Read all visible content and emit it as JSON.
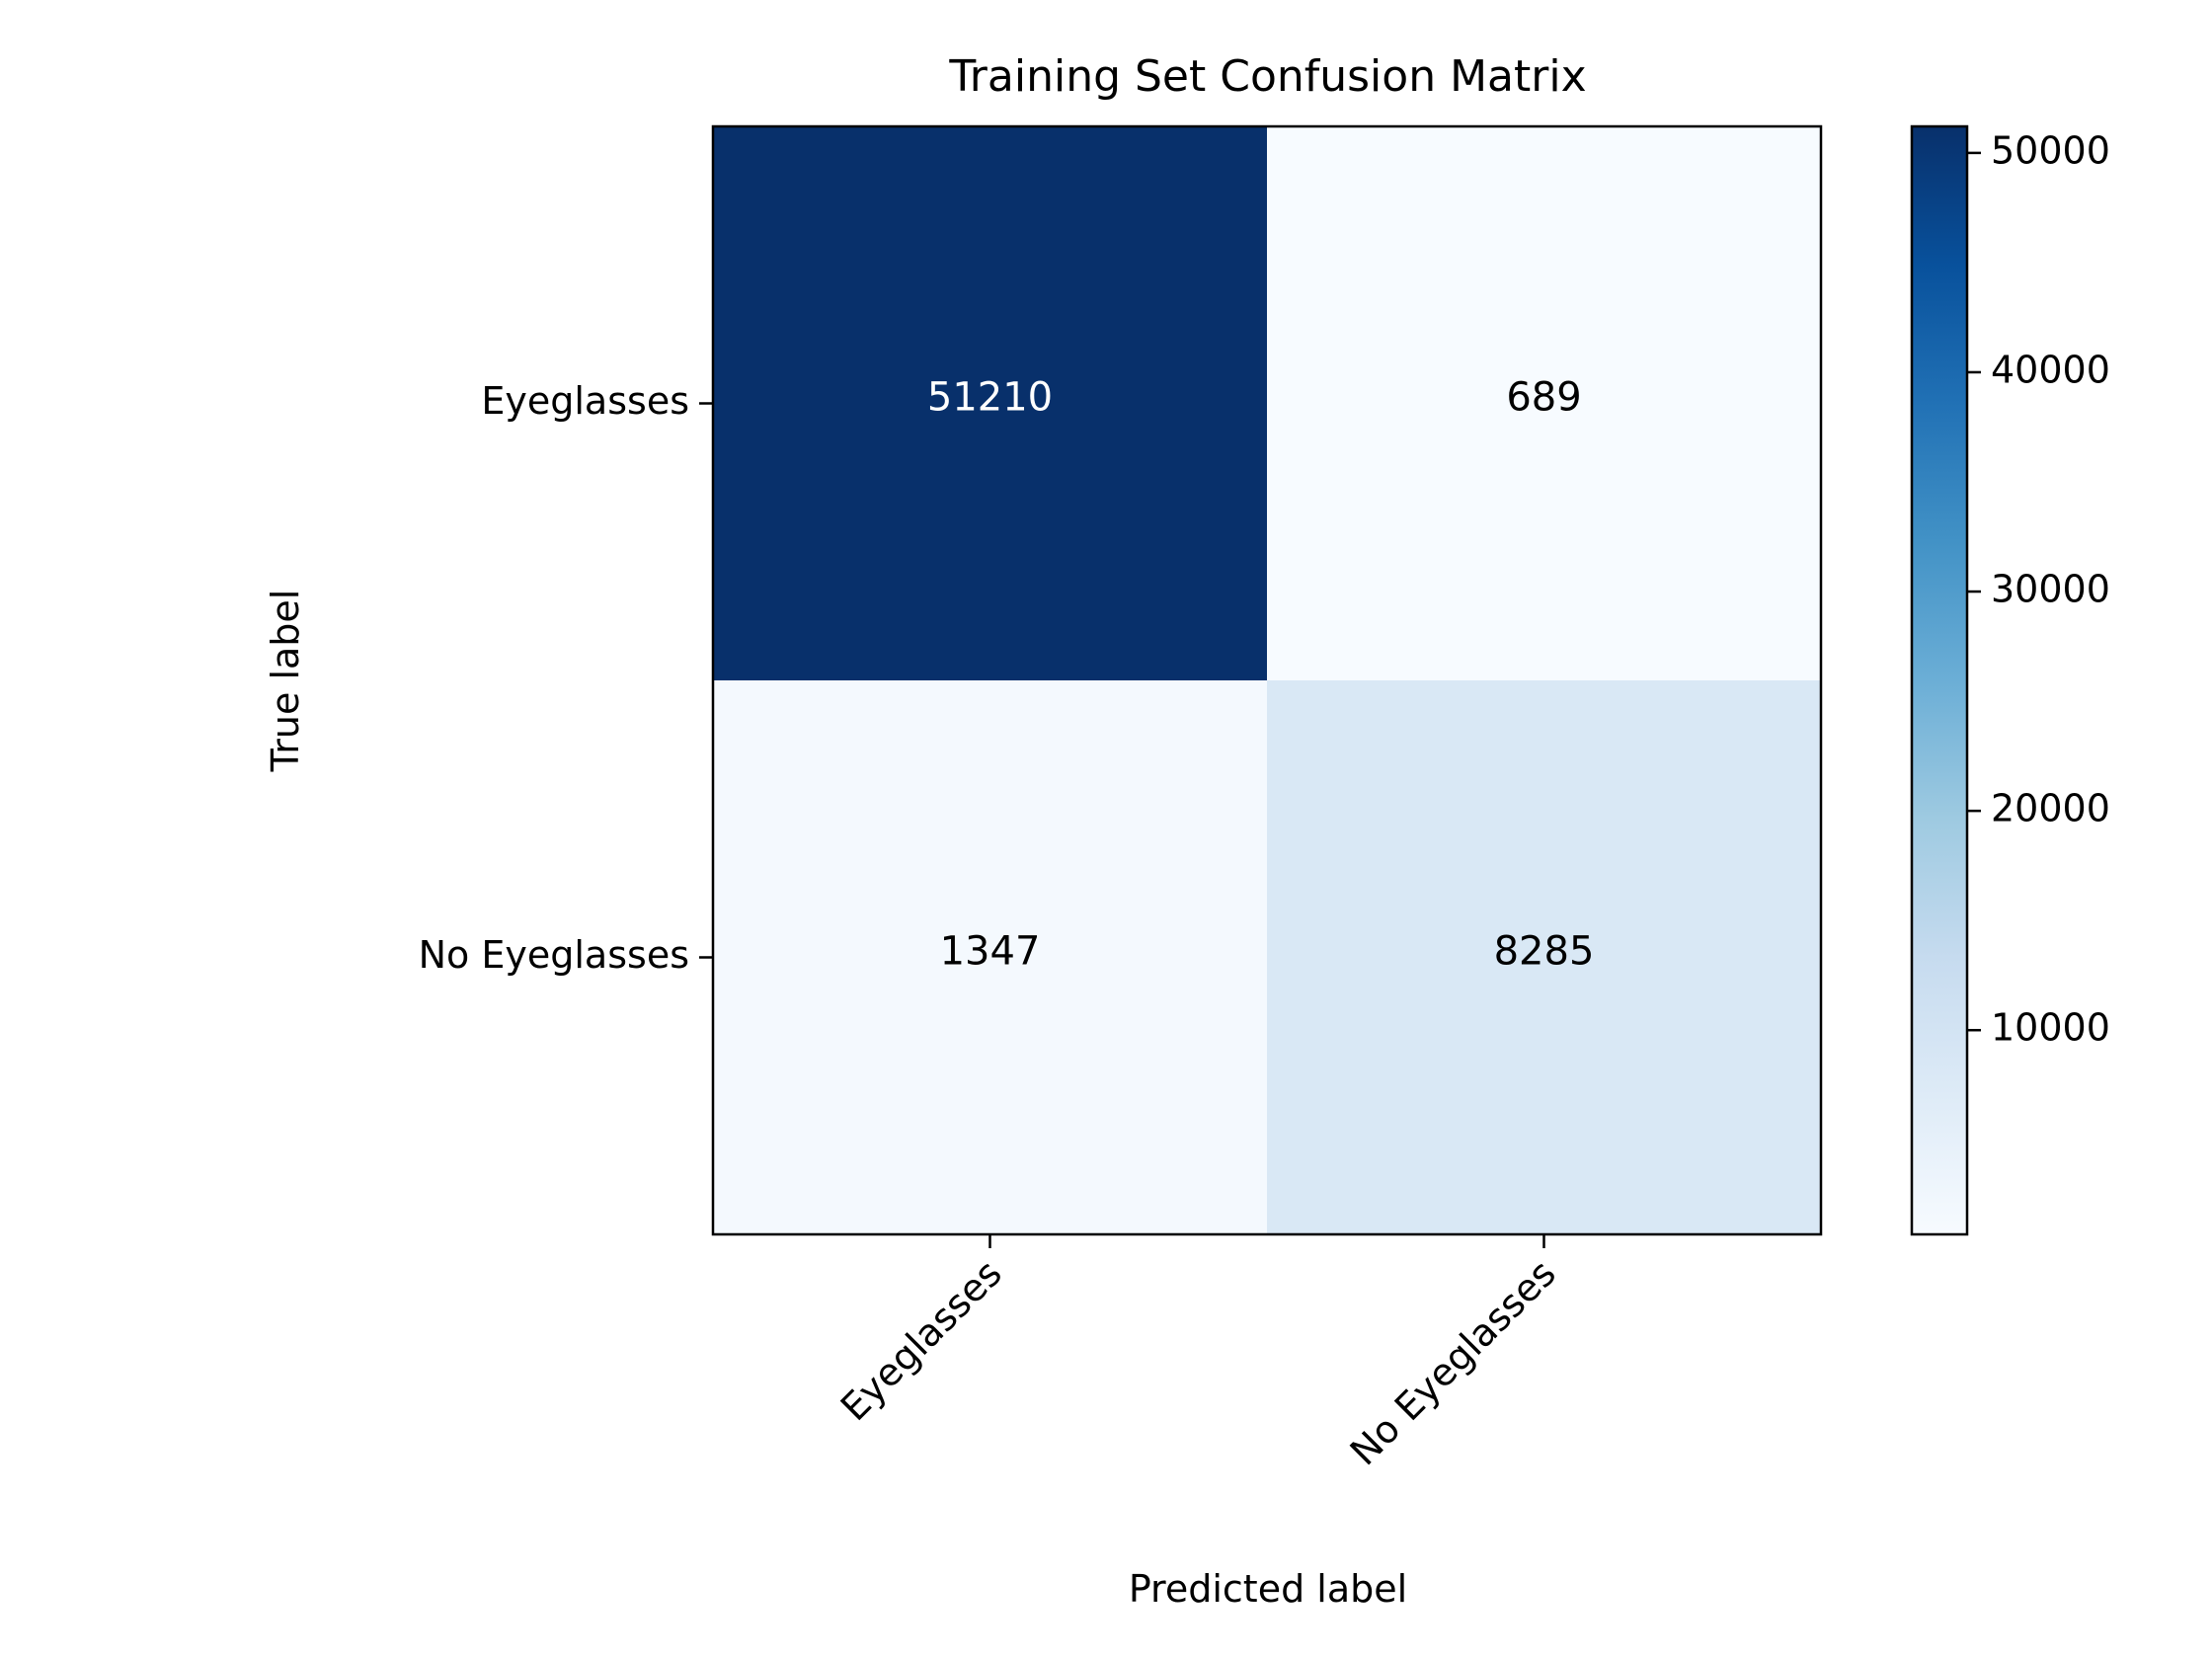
{
  "chart_data": {
    "type": "heatmap",
    "title": "Training Set Confusion Matrix",
    "xlabel": "Predicted label",
    "ylabel": "True label",
    "x_categories": [
      "Eyeglasses",
      "No Eyeglasses"
    ],
    "y_categories": [
      "Eyeglasses",
      "No Eyeglasses"
    ],
    "values": [
      [
        51210,
        689
      ],
      [
        1347,
        8285
      ]
    ],
    "colormap": "Blues",
    "color_range": [
      689,
      51210
    ],
    "colorbar": {
      "ticks": [
        10000,
        20000,
        30000,
        40000,
        50000
      ],
      "tick_labels": [
        "10000",
        "20000",
        "30000",
        "40000",
        "50000"
      ]
    },
    "text_color_light": "#ffffff",
    "text_color_dark": "#000000",
    "grid": false
  }
}
